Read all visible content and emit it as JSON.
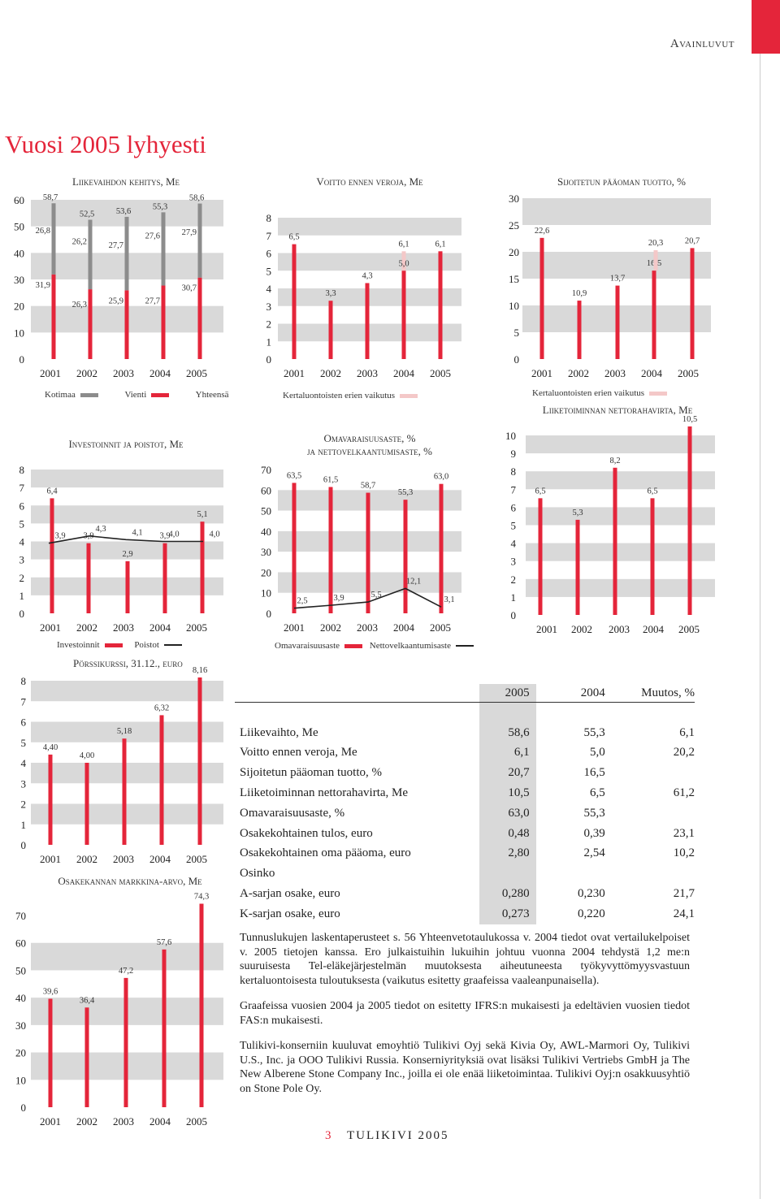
{
  "header": {
    "section": "Avainluvut",
    "title": "Vuosi 2005 lyhyesti"
  },
  "colors": {
    "accent": "#e4253a",
    "grey_bar": "#8c8c8c",
    "pale": "#f4c8c8",
    "band": "#d9d9d9"
  },
  "years": [
    "2001",
    "2002",
    "2003",
    "2004",
    "2005"
  ],
  "chart_data": [
    {
      "id": "liikevaihto",
      "type": "bar",
      "title": "Liikevaihdon kehitys, Me",
      "categories": [
        "2001",
        "2002",
        "2003",
        "2004",
        "2005"
      ],
      "series": [
        {
          "name": "Kotimaa",
          "values": [
            26.8,
            26.2,
            27.7,
            27.6,
            27.9
          ]
        },
        {
          "name": "Vienti",
          "values": [
            31.9,
            26.3,
            25.9,
            27.7,
            30.7
          ]
        },
        {
          "name": "Yhteensä",
          "values": [
            58.7,
            52.5,
            53.6,
            55.3,
            58.6
          ]
        }
      ],
      "labels": {
        "kotimaa": [
          "26,8",
          "26,2",
          "27,7",
          "27,6",
          "27,9"
        ],
        "vienti": [
          "31,9",
          "26,3",
          "25,9",
          "27,7",
          "30,7"
        ],
        "total": [
          "58,7",
          "52,5",
          "53,6",
          "55,3",
          "58,6"
        ]
      },
      "yticks": [
        "0",
        "10",
        "20",
        "30",
        "40",
        "50",
        "60"
      ],
      "ylim": [
        0,
        60
      ],
      "legend": [
        "Kotimaa",
        "Vienti",
        "Yhteensä"
      ]
    },
    {
      "id": "voitto",
      "type": "bar",
      "title": "Voitto ennen veroja, Me",
      "categories": [
        "2001",
        "2002",
        "2003",
        "2004",
        "2005"
      ],
      "values": [
        6.5,
        3.3,
        4.3,
        5.0,
        6.1
      ],
      "labels": [
        "6,5",
        "3,3",
        "4,3",
        "5,0",
        "6,1"
      ],
      "extra_value": 6.1,
      "extra_label": "6,1",
      "yticks": [
        "0",
        "1",
        "2",
        "3",
        "4",
        "5",
        "6",
        "7",
        "8"
      ],
      "ylim": [
        0,
        8
      ],
      "legend": [
        "Kertaluontoisten erien vaikutus"
      ]
    },
    {
      "id": "sijoitettu",
      "type": "bar",
      "title": "Sijoitetun pääoman tuotto, %",
      "categories": [
        "2001",
        "2002",
        "2003",
        "2004",
        "2005"
      ],
      "values": [
        22.6,
        10.9,
        13.7,
        16.5,
        20.7
      ],
      "labels": [
        "22,6",
        "10,9",
        "13,7",
        "16,5",
        "20,7"
      ],
      "extra_value": 20.3,
      "extra_label": "20,3",
      "yticks": [
        "0",
        "5",
        "10",
        "15",
        "20",
        "25",
        "30"
      ],
      "ylim": [
        0,
        30
      ],
      "legend": [
        "Kertaluontoisten erien vaikutus"
      ]
    },
    {
      "id": "investoinnit",
      "type": "bar",
      "title": "Investoinnit ja poistot, Me",
      "categories": [
        "2001",
        "2002",
        "2003",
        "2004",
        "2005"
      ],
      "series": [
        {
          "name": "Investoinnit",
          "values": [
            6.4,
            3.9,
            2.9,
            3.9,
            5.1
          ]
        },
        {
          "name": "Poistot",
          "values": [
            3.9,
            4.3,
            4.1,
            4.0,
            4.0
          ]
        }
      ],
      "bar_labels": [
        "6,4",
        "3,9",
        "2,9",
        "3,9",
        "5,1"
      ],
      "line_labels": [
        "3,9",
        "4,3",
        "4,1",
        "4,0",
        "4,0"
      ],
      "yticks": [
        "0",
        "1",
        "2",
        "3",
        "4",
        "5",
        "6",
        "7",
        "8"
      ],
      "ylim": [
        0,
        8
      ],
      "legend": [
        "Investoinnit",
        "Poistot"
      ]
    },
    {
      "id": "omavaraisuus",
      "type": "bar",
      "title": "Omavaraisuusaste, %",
      "subtitle": "ja nettovelkaantumisaste, %",
      "categories": [
        "2001",
        "2002",
        "2003",
        "2004",
        "2005"
      ],
      "series": [
        {
          "name": "Omavaraisuusaste",
          "values": [
            63.5,
            61.5,
            58.7,
            55.3,
            63.0
          ]
        },
        {
          "name": "Nettovelkaantumisaste",
          "values": [
            2.5,
            3.9,
            5.5,
            12.1,
            3.1
          ]
        }
      ],
      "bar_labels": [
        "63,5",
        "61,5",
        "58,7",
        "55,3",
        "63,0"
      ],
      "line_labels": [
        "2,5",
        "3,9",
        "5,5",
        "12,1",
        "3,1"
      ],
      "yticks": [
        "0",
        "10",
        "20",
        "30",
        "40",
        "50",
        "60",
        "70"
      ],
      "ylim": [
        0,
        70
      ],
      "legend": [
        "Omavaraisuusaste",
        "Nettovelkaantumisaste"
      ]
    },
    {
      "id": "nettorahavirta",
      "type": "bar",
      "title": "Liiketoiminnan nettorahavirta, Me",
      "categories": [
        "2001",
        "2002",
        "2003",
        "2004",
        "2005"
      ],
      "values": [
        6.5,
        5.3,
        8.2,
        6.5,
        10.5
      ],
      "labels": [
        "6,5",
        "5,3",
        "8,2",
        "6,5",
        "10,5"
      ],
      "yticks": [
        "0",
        "1",
        "2",
        "3",
        "4",
        "5",
        "6",
        "7",
        "8",
        "9",
        "10"
      ],
      "ylim": [
        0,
        10
      ]
    },
    {
      "id": "porssikurssi",
      "type": "bar",
      "title": "Pörssikurssi, 31.12., euro",
      "categories": [
        "2001",
        "2002",
        "2003",
        "2004",
        "2005"
      ],
      "values": [
        4.4,
        4.0,
        5.18,
        6.32,
        8.16
      ],
      "labels": [
        "4,40",
        "4,00",
        "5,18",
        "6,32",
        "8,16"
      ],
      "yticks": [
        "0",
        "1",
        "2",
        "3",
        "4",
        "5",
        "6",
        "7",
        "8"
      ],
      "ylim": [
        0,
        8
      ]
    },
    {
      "id": "markkina",
      "type": "bar",
      "title": "Osakekannan markkina-arvo, Me",
      "categories": [
        "2001",
        "2002",
        "2003",
        "2004",
        "2005"
      ],
      "values": [
        39.6,
        36.4,
        47.2,
        57.6,
        74.3
      ],
      "labels": [
        "39,6",
        "36,4",
        "47,2",
        "57,6",
        "74,3"
      ],
      "yticks": [
        "0",
        "10",
        "20",
        "30",
        "40",
        "50",
        "60",
        "70"
      ],
      "ylim": [
        0,
        70
      ]
    }
  ],
  "key_table": {
    "headers": [
      "2005",
      "2004",
      "Muutos, %"
    ],
    "rows": [
      {
        "label": "Liikevaihto, Me",
        "v2005": "58,6",
        "v2004": "55,3",
        "change": "6,1"
      },
      {
        "label": "Voitto ennen veroja, Me",
        "v2005": "6,1",
        "v2004": "5,0",
        "change": "20,2"
      },
      {
        "label": "Sijoitetun pääoman tuotto, %",
        "v2005": "20,7",
        "v2004": "16,5",
        "change": ""
      },
      {
        "label": "Liiketoiminnan nettorahavirta, Me",
        "v2005": "10,5",
        "v2004": "6,5",
        "change": "61,2"
      },
      {
        "label": "Omavaraisuusaste, %",
        "v2005": "63,0",
        "v2004": "55,3",
        "change": ""
      },
      {
        "label": "Osakekohtainen tulos, euro",
        "v2005": "0,48",
        "v2004": "0,39",
        "change": "23,1"
      },
      {
        "label": "Osakekohtainen oma pääoma, euro",
        "v2005": "2,80",
        "v2004": "2,54",
        "change": "10,2"
      },
      {
        "label": "Osinko",
        "v2005": "",
        "v2004": "",
        "change": ""
      },
      {
        "label": "A-sarjan osake, euro",
        "v2005": "0,280",
        "v2004": "0,230",
        "change": "21,7"
      },
      {
        "label": "K-sarjan osake, euro",
        "v2005": "0,273",
        "v2004": "0,220",
        "change": "24,1"
      }
    ]
  },
  "notes": [
    "Tunnuslukujen laskentaperusteet s. 56 Yhteenvetotaulukossa v. 2004 tiedot ovat vertailukelpoiset v. 2005 tietojen kanssa. Ero julkaistuihin lukuihin johtuu vuonna 2004 tehdystä 1,2 me:n suuruisesta Tel-eläkejärjestelmän muutoksesta aiheutuneesta työkyvyttömyysvastuun kertaluontoisesta tuloutuksesta (vaikutus esitetty graafeissa vaaleanpunaisella).",
    "Graafeissa vuosien 2004 ja 2005 tiedot on esitetty IFRS:n mukaisesti ja edeltävien vuosien tiedot FAS:n mukaisesti.",
    "Tulikivi-konserniin kuuluvat emoyhtiö Tulikivi Oyj sekä Kivia Oy, AWL-Marmori Oy, Tulikivi U.S., Inc. ja OOO Tulikivi Russia. Konserniyrityksiä ovat lisäksi Tulikivi Vertriebs GmbH ja The New Alberene Stone Company Inc., joilla ei ole enää liiketoimintaa. Tulikivi Oyj:n osakkuusyhtiö on Stone Pole Oy."
  ],
  "footer": {
    "page": "3",
    "brand": "TULIKIVI 2005"
  }
}
